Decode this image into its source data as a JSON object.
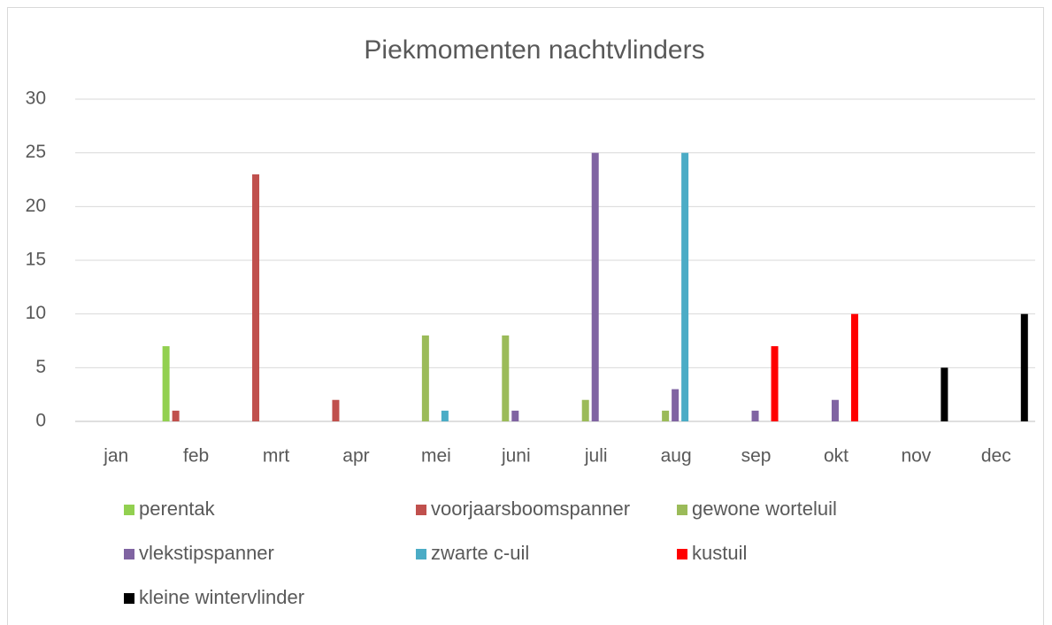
{
  "chart_data": {
    "type": "bar",
    "title": "Piekmomenten nachtvlinders",
    "categories": [
      "jan",
      "feb",
      "mrt",
      "apr",
      "mei",
      "juni",
      "juli",
      "aug",
      "sep",
      "okt",
      "nov",
      "dec"
    ],
    "series": [
      {
        "name": "perentak",
        "color": "#92d050",
        "values": [
          0,
          7,
          0,
          0,
          0,
          0,
          0,
          0,
          0,
          0,
          0,
          0
        ]
      },
      {
        "name": "voorjaarsboomspanner",
        "color": "#c0504d",
        "values": [
          0,
          1,
          23,
          2,
          0,
          0,
          0,
          0,
          0,
          0,
          0,
          0
        ]
      },
      {
        "name": "gewone worteluil",
        "color": "#9bbb59",
        "values": [
          0,
          0,
          0,
          0,
          8,
          8,
          2,
          1,
          0,
          0,
          0,
          0
        ]
      },
      {
        "name": "vlekstipspanner",
        "color": "#8064a2",
        "values": [
          0,
          0,
          0,
          0,
          0,
          1,
          25,
          3,
          1,
          2,
          0,
          0
        ]
      },
      {
        "name": "zwarte c-uil",
        "color": "#4bacc6",
        "values": [
          0,
          0,
          0,
          0,
          1,
          0,
          0,
          25,
          0,
          0,
          0,
          0
        ]
      },
      {
        "name": "kustuil",
        "color": "#ff0000",
        "values": [
          0,
          0,
          0,
          0,
          0,
          0,
          0,
          0,
          7,
          10,
          0,
          0
        ]
      },
      {
        "name": "kleine wintervlinder",
        "color": "#000000",
        "values": [
          0,
          0,
          0,
          0,
          0,
          0,
          0,
          0,
          0,
          0,
          5,
          10
        ]
      }
    ],
    "ylim": [
      0,
      30
    ],
    "yticks": [
      0,
      5,
      10,
      15,
      20,
      25,
      30
    ],
    "grid": true,
    "legend": "bottom"
  }
}
